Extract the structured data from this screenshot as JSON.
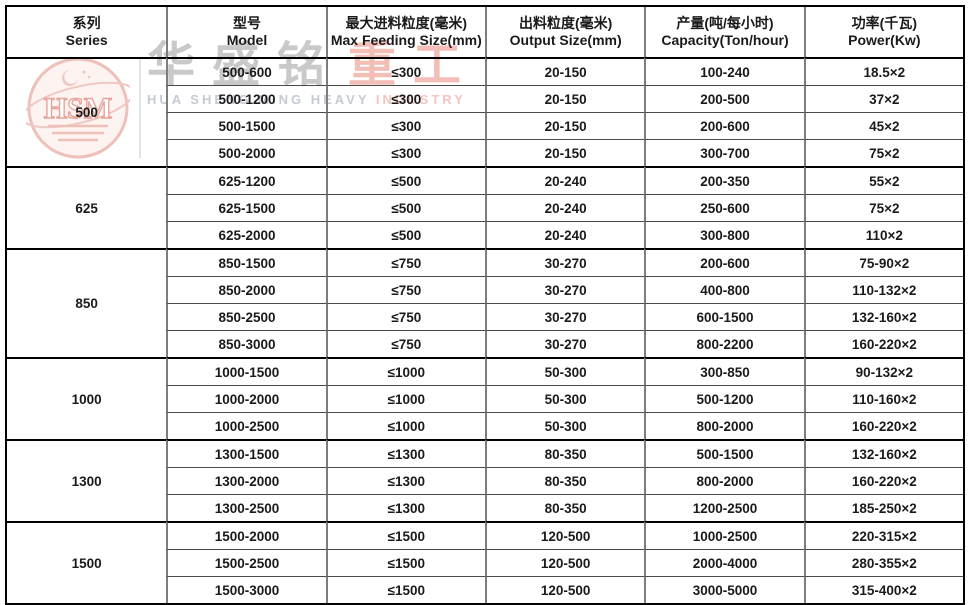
{
  "watermark": {
    "logo_text": "HSM",
    "brand_zh_gray": "华盛铭",
    "brand_zh_red": "重工",
    "brand_en_gray": "HUA SHENG MING HEAVY",
    "brand_en_red": "INDUSTRY"
  },
  "colors": {
    "table_outer_border": "#000000",
    "grid_vertical": "#7d7d7d",
    "grid_horizontal": "#4a4a4a",
    "group_divider": "#000000",
    "cell_text": "#1a1a1a",
    "watermark_gray": "#c9c9c9",
    "watermark_red": "#f2beb6"
  },
  "table": {
    "headers": [
      {
        "key": "series",
        "zh": "系列",
        "en": "Series"
      },
      {
        "key": "model",
        "zh": "型号",
        "en": "Model"
      },
      {
        "key": "max-feeding-size",
        "zh": "最大进料粒度(毫米)",
        "en": "Max Feeding Size(mm)"
      },
      {
        "key": "output-size",
        "zh": "出料粒度(毫米)",
        "en": "Output Size(mm)"
      },
      {
        "key": "capacity",
        "zh": "产量(吨/每小时)",
        "en": "Capacity(Ton/hour)"
      },
      {
        "key": "power",
        "zh": "功率(千瓦)",
        "en": "Power(Kw)"
      }
    ],
    "groups": [
      {
        "series": "500",
        "rows": [
          [
            "500-600",
            "≤300",
            "20-150",
            "100-240",
            "18.5×2"
          ],
          [
            "500-1200",
            "≤300",
            "20-150",
            "200-500",
            "37×2"
          ],
          [
            "500-1500",
            "≤300",
            "20-150",
            "200-600",
            "45×2"
          ],
          [
            "500-2000",
            "≤300",
            "20-150",
            "300-700",
            "75×2"
          ]
        ]
      },
      {
        "series": "625",
        "rows": [
          [
            "625-1200",
            "≤500",
            "20-240",
            "200-350",
            "55×2"
          ],
          [
            "625-1500",
            "≤500",
            "20-240",
            "250-600",
            "75×2"
          ],
          [
            "625-2000",
            "≤500",
            "20-240",
            "300-800",
            "110×2"
          ]
        ]
      },
      {
        "series": "850",
        "rows": [
          [
            "850-1500",
            "≤750",
            "30-270",
            "200-600",
            "75-90×2"
          ],
          [
            "850-2000",
            "≤750",
            "30-270",
            "400-800",
            "110-132×2"
          ],
          [
            "850-2500",
            "≤750",
            "30-270",
            "600-1500",
            "132-160×2"
          ],
          [
            "850-3000",
            "≤750",
            "30-270",
            "800-2200",
            "160-220×2"
          ]
        ]
      },
      {
        "series": "1000",
        "rows": [
          [
            "1000-1500",
            "≤1000",
            "50-300",
            "300-850",
            "90-132×2"
          ],
          [
            "1000-2000",
            "≤1000",
            "50-300",
            "500-1200",
            "110-160×2"
          ],
          [
            "1000-2500",
            "≤1000",
            "50-300",
            "800-2000",
            "160-220×2"
          ]
        ]
      },
      {
        "series": "1300",
        "rows": [
          [
            "1300-1500",
            "≤1300",
            "80-350",
            "500-1500",
            "132-160×2"
          ],
          [
            "1300-2000",
            "≤1300",
            "80-350",
            "800-2000",
            "160-220×2"
          ],
          [
            "1300-2500",
            "≤1300",
            "80-350",
            "1200-2500",
            "185-250×2"
          ]
        ]
      },
      {
        "series": "1500",
        "rows": [
          [
            "1500-2000",
            "≤1500",
            "120-500",
            "1000-2500",
            "220-315×2"
          ],
          [
            "1500-2500",
            "≤1500",
            "120-500",
            "2000-4000",
            "280-355×2"
          ],
          [
            "1500-3000",
            "≤1500",
            "120-500",
            "3000-5000",
            "315-400×2"
          ]
        ]
      }
    ]
  }
}
